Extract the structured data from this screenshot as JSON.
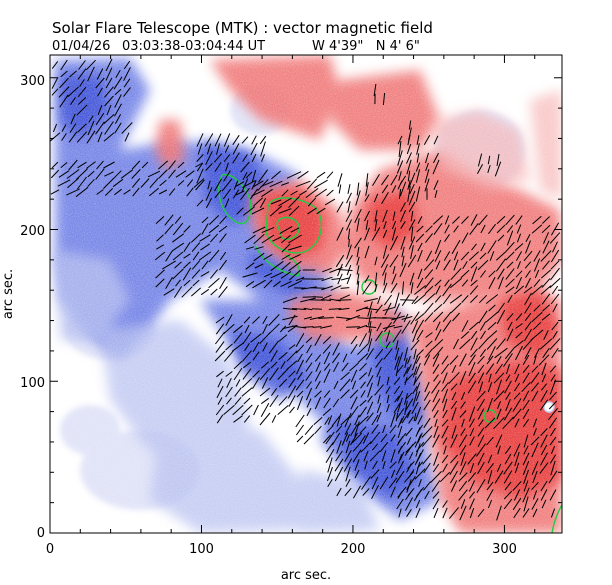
{
  "header": {
    "title": "Solar Flare Telescope (MTK) : vector magnetic field",
    "date": "01/04/26",
    "time_range": "03:03:38-03:04:44 UT",
    "position": "W 4'39\"   N 4' 6\""
  },
  "axes": {
    "xlabel": "arc sec.",
    "ylabel": "arc sec.",
    "xrange": [
      0,
      338
    ],
    "yrange": [
      0,
      315
    ],
    "xticks": [
      "0",
      "100",
      "200",
      "300"
    ],
    "yticks": [
      "0",
      "100",
      "200",
      "300"
    ]
  },
  "colors": {
    "negative_polarity": "#5a6ee0",
    "positive_polarity": "#f05050",
    "contour": "#22cc44",
    "vectors": "#000000"
  }
}
